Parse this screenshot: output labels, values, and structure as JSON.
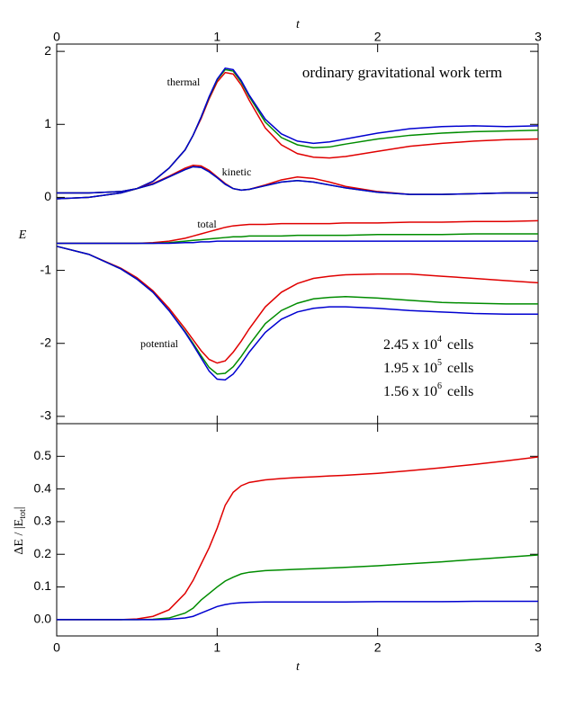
{
  "chart_data": [
    {
      "type": "line",
      "title": "ordinary gravitational work term",
      "x_label": "t",
      "y_label": "E",
      "xlim": [
        0,
        3
      ],
      "xticks": [
        0,
        1,
        2,
        3
      ],
      "ylim": [
        -3.1,
        2.1
      ],
      "yticks": [
        -3,
        -2,
        -1,
        0,
        1,
        2
      ],
      "annotations": [
        "thermal",
        "kinetic",
        "total",
        "potential"
      ],
      "legend": [
        {
          "mantissa": "2.45 x 10",
          "exponent": "4",
          "unit": "cells",
          "color": "#e00000"
        },
        {
          "mantissa": "1.95 x 10",
          "exponent": "5",
          "unit": "cells",
          "color": "#008c00"
        },
        {
          "mantissa": "1.56 x 10",
          "exponent": "6",
          "unit": "cells",
          "color": "#0000d0"
        }
      ],
      "x": [
        0,
        0.2,
        0.4,
        0.5,
        0.6,
        0.7,
        0.8,
        0.85,
        0.9,
        0.95,
        1.0,
        1.05,
        1.1,
        1.15,
        1.2,
        1.3,
        1.4,
        1.5,
        1.6,
        1.7,
        1.8,
        2.0,
        2.2,
        2.4,
        2.6,
        2.8,
        3.0
      ],
      "series": [
        {
          "color": "#e00000",
          "values": [
            -0.02,
            0.0,
            0.06,
            0.12,
            0.22,
            0.4,
            0.65,
            0.85,
            1.08,
            1.35,
            1.58,
            1.71,
            1.69,
            1.54,
            1.33,
            0.95,
            0.72,
            0.6,
            0.55,
            0.54,
            0.56,
            0.63,
            0.7,
            0.74,
            0.77,
            0.79,
            0.8
          ]
        },
        {
          "color": "#008c00",
          "values": [
            -0.02,
            0.0,
            0.06,
            0.12,
            0.22,
            0.4,
            0.65,
            0.85,
            1.1,
            1.37,
            1.61,
            1.75,
            1.73,
            1.58,
            1.38,
            1.03,
            0.82,
            0.72,
            0.68,
            0.69,
            0.73,
            0.8,
            0.85,
            0.88,
            0.9,
            0.91,
            0.92
          ]
        },
        {
          "color": "#0000d0",
          "values": [
            -0.02,
            0.0,
            0.06,
            0.12,
            0.22,
            0.4,
            0.65,
            0.85,
            1.1,
            1.38,
            1.62,
            1.77,
            1.75,
            1.6,
            1.4,
            1.07,
            0.87,
            0.77,
            0.74,
            0.76,
            0.8,
            0.88,
            0.94,
            0.97,
            0.98,
            0.97,
            0.98
          ]
        },
        {
          "color": "#e00000",
          "values": [
            0.06,
            0.06,
            0.08,
            0.12,
            0.19,
            0.29,
            0.4,
            0.44,
            0.43,
            0.37,
            0.28,
            0.19,
            0.12,
            0.1,
            0.11,
            0.17,
            0.24,
            0.28,
            0.26,
            0.21,
            0.15,
            0.08,
            0.04,
            0.04,
            0.05,
            0.06,
            0.06
          ]
        },
        {
          "color": "#008c00",
          "values": [
            0.06,
            0.06,
            0.08,
            0.12,
            0.18,
            0.28,
            0.38,
            0.42,
            0.41,
            0.35,
            0.27,
            0.18,
            0.12,
            0.1,
            0.11,
            0.16,
            0.21,
            0.23,
            0.21,
            0.17,
            0.13,
            0.07,
            0.04,
            0.04,
            0.05,
            0.06,
            0.06
          ]
        },
        {
          "color": "#0000d0",
          "values": [
            0.06,
            0.06,
            0.08,
            0.12,
            0.18,
            0.28,
            0.38,
            0.42,
            0.41,
            0.35,
            0.27,
            0.18,
            0.12,
            0.1,
            0.11,
            0.16,
            0.21,
            0.23,
            0.21,
            0.17,
            0.13,
            0.07,
            0.04,
            0.04,
            0.05,
            0.06,
            0.06
          ]
        },
        {
          "color": "#e00000",
          "values": [
            -0.63,
            -0.63,
            -0.63,
            -0.63,
            -0.62,
            -0.6,
            -0.56,
            -0.53,
            -0.5,
            -0.47,
            -0.44,
            -0.41,
            -0.39,
            -0.38,
            -0.37,
            -0.37,
            -0.36,
            -0.36,
            -0.36,
            -0.36,
            -0.35,
            -0.35,
            -0.34,
            -0.34,
            -0.33,
            -0.33,
            -0.32
          ]
        },
        {
          "color": "#008c00",
          "values": [
            -0.63,
            -0.63,
            -0.63,
            -0.63,
            -0.63,
            -0.62,
            -0.6,
            -0.59,
            -0.58,
            -0.57,
            -0.56,
            -0.55,
            -0.54,
            -0.54,
            -0.53,
            -0.53,
            -0.53,
            -0.52,
            -0.52,
            -0.52,
            -0.52,
            -0.51,
            -0.51,
            -0.51,
            -0.5,
            -0.5,
            -0.5
          ]
        },
        {
          "color": "#0000d0",
          "values": [
            -0.63,
            -0.63,
            -0.63,
            -0.63,
            -0.63,
            -0.63,
            -0.62,
            -0.62,
            -0.61,
            -0.61,
            -0.6,
            -0.6,
            -0.6,
            -0.6,
            -0.6,
            -0.6,
            -0.6,
            -0.6,
            -0.6,
            -0.6,
            -0.6,
            -0.6,
            -0.6,
            -0.6,
            -0.6,
            -0.6,
            -0.6
          ]
        },
        {
          "color": "#e00000",
          "values": [
            -0.67,
            -0.78,
            -0.97,
            -1.1,
            -1.28,
            -1.52,
            -1.8,
            -1.95,
            -2.1,
            -2.22,
            -2.27,
            -2.24,
            -2.12,
            -1.97,
            -1.8,
            -1.5,
            -1.3,
            -1.18,
            -1.11,
            -1.08,
            -1.06,
            -1.05,
            -1.05,
            -1.08,
            -1.11,
            -1.14,
            -1.17
          ]
        },
        {
          "color": "#008c00",
          "values": [
            -0.67,
            -0.78,
            -0.98,
            -1.12,
            -1.3,
            -1.55,
            -1.84,
            -2.0,
            -2.17,
            -2.33,
            -2.42,
            -2.41,
            -2.32,
            -2.18,
            -2.02,
            -1.73,
            -1.55,
            -1.45,
            -1.39,
            -1.37,
            -1.36,
            -1.38,
            -1.41,
            -1.44,
            -1.45,
            -1.46,
            -1.46
          ]
        },
        {
          "color": "#0000d0",
          "values": [
            -0.67,
            -0.78,
            -0.98,
            -1.12,
            -1.3,
            -1.55,
            -1.85,
            -2.02,
            -2.2,
            -2.38,
            -2.49,
            -2.5,
            -2.42,
            -2.28,
            -2.12,
            -1.85,
            -1.67,
            -1.57,
            -1.52,
            -1.5,
            -1.5,
            -1.52,
            -1.55,
            -1.57,
            -1.59,
            -1.6,
            -1.6
          ]
        }
      ]
    },
    {
      "type": "line",
      "x_label": "t",
      "y_label": {
        "prefix": "ΔE / |E",
        "subscript": "tot",
        "suffix": "|"
      },
      "xlim": [
        0,
        3
      ],
      "xticks": [
        0,
        1,
        2,
        3
      ],
      "ylim": [
        -0.05,
        0.6
      ],
      "yticks": [
        {
          "value": 0,
          "label": "0.0"
        },
        0.1,
        0.2,
        0.3,
        0.4,
        0.5
      ],
      "x": [
        0,
        0.2,
        0.4,
        0.5,
        0.6,
        0.7,
        0.8,
        0.85,
        0.9,
        0.95,
        1.0,
        1.05,
        1.1,
        1.15,
        1.2,
        1.3,
        1.4,
        1.5,
        1.6,
        1.7,
        1.8,
        2.0,
        2.2,
        2.4,
        2.6,
        2.8,
        3.0
      ],
      "series": [
        {
          "color": "#e00000",
          "values": [
            0,
            0,
            0,
            0.002,
            0.01,
            0.03,
            0.08,
            0.12,
            0.17,
            0.22,
            0.28,
            0.35,
            0.39,
            0.41,
            0.42,
            0.428,
            0.432,
            0.435,
            0.437,
            0.44,
            0.442,
            0.448,
            0.456,
            0.465,
            0.475,
            0.486,
            0.498
          ]
        },
        {
          "color": "#008c00",
          "values": [
            0,
            0,
            0,
            0,
            0.001,
            0.005,
            0.02,
            0.035,
            0.06,
            0.08,
            0.1,
            0.118,
            0.13,
            0.14,
            0.145,
            0.15,
            0.152,
            0.154,
            0.156,
            0.158,
            0.16,
            0.165,
            0.171,
            0.177,
            0.184,
            0.191,
            0.198
          ]
        },
        {
          "color": "#0000d0",
          "values": [
            0,
            0,
            0,
            0,
            0,
            0.001,
            0.005,
            0.01,
            0.02,
            0.03,
            0.04,
            0.046,
            0.05,
            0.052,
            0.053,
            0.054,
            0.054,
            0.054,
            0.054,
            0.054,
            0.054,
            0.055,
            0.055,
            0.055,
            0.056,
            0.056,
            0.056
          ]
        }
      ]
    }
  ]
}
